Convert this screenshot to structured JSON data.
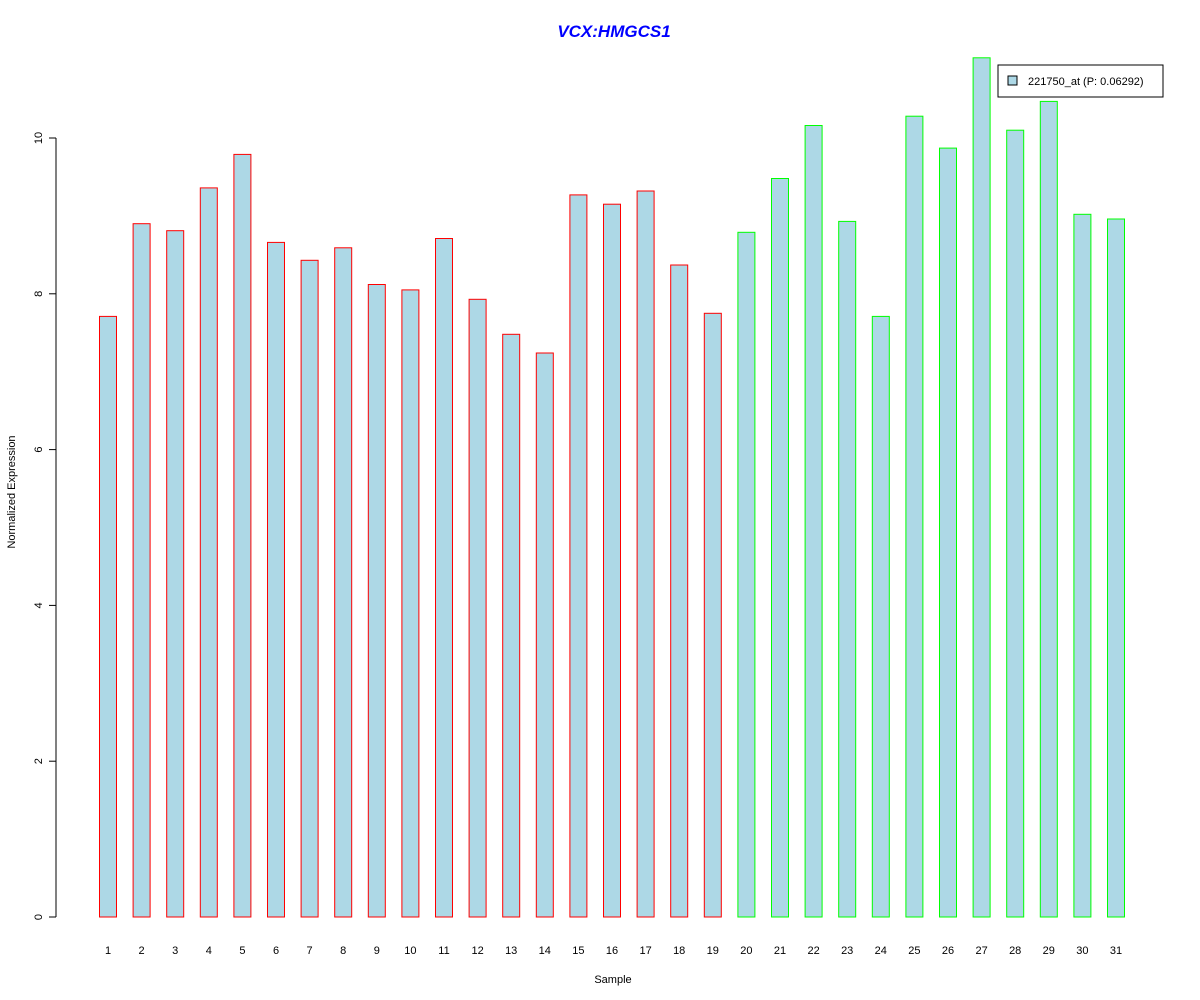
{
  "chart_data": {
    "type": "bar",
    "title": "VCX:HMGCS1",
    "xlabel": "Sample",
    "ylabel": "Normalized Expression",
    "ylim": [
      0,
      11
    ],
    "yticks": [
      0,
      2,
      4,
      6,
      8,
      10
    ],
    "grid": false,
    "legend_position": "top-right",
    "categories": [
      "1",
      "2",
      "3",
      "4",
      "5",
      "6",
      "7",
      "8",
      "9",
      "10",
      "11",
      "12",
      "13",
      "14",
      "15",
      "16",
      "17",
      "18",
      "19",
      "20",
      "21",
      "22",
      "23",
      "24",
      "25",
      "26",
      "27",
      "28",
      "29",
      "30",
      "31"
    ],
    "series": [
      {
        "name": "221750_at (P: 0.06292)",
        "values": [
          7.71,
          8.9,
          8.81,
          9.36,
          9.79,
          8.66,
          8.43,
          8.59,
          8.12,
          8.05,
          8.71,
          7.93,
          7.48,
          7.24,
          9.27,
          9.15,
          9.32,
          8.37,
          7.75,
          8.79,
          9.48,
          10.16,
          8.93,
          7.71,
          10.28,
          9.87,
          11.03,
          10.1,
          10.47,
          9.02,
          8.96
        ],
        "group": [
          "1",
          "1",
          "1",
          "1",
          "1",
          "1",
          "1",
          "1",
          "1",
          "1",
          "1",
          "1",
          "1",
          "1",
          "1",
          "1",
          "1",
          "1",
          "1",
          "2",
          "2",
          "2",
          "2",
          "2",
          "2",
          "2",
          "2",
          "2",
          "2",
          "2",
          "2"
        ]
      }
    ],
    "colors": {
      "title": "#0000ff",
      "bar_fill": "#add8e6",
      "group_1_border": "#ff0000",
      "group_2_border": "#00ff00",
      "axis": "#000000"
    }
  }
}
